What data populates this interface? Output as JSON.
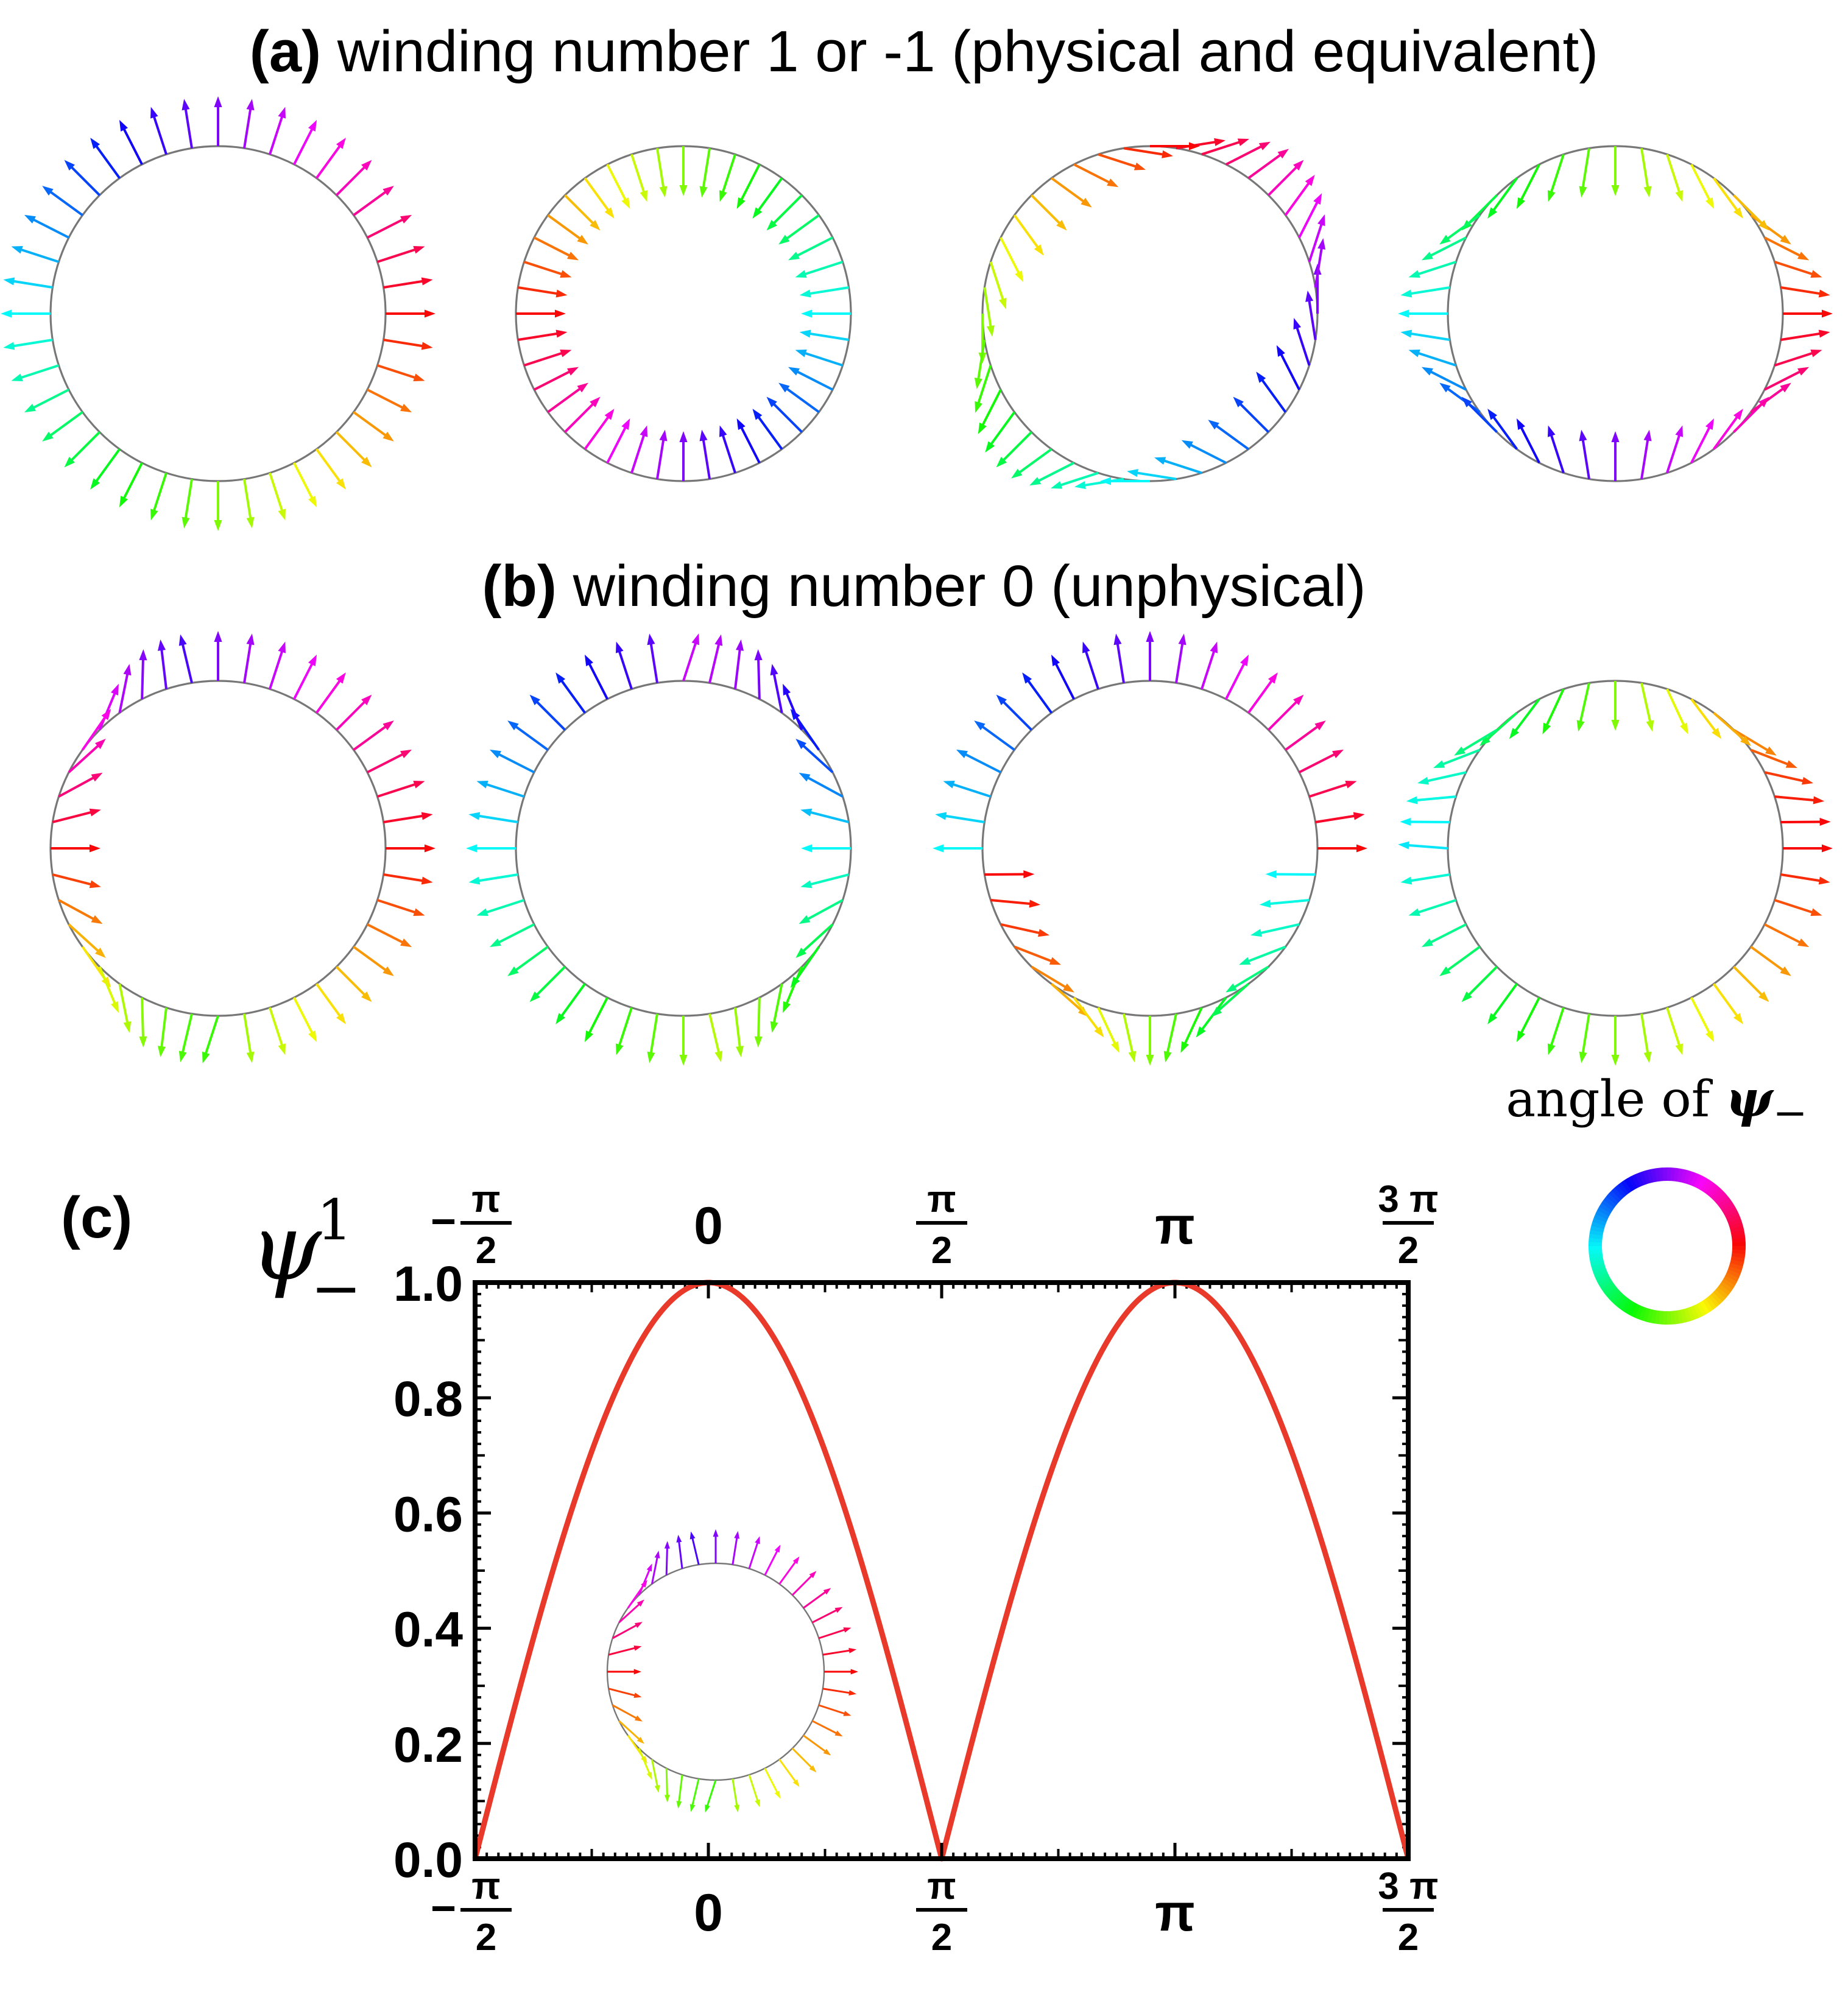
{
  "panel_a": {
    "label": "(a)",
    "title": "winding number 1 or -1 (physical and equivalent)",
    "patterns": [
      "outward",
      "inward",
      "spin-up",
      "spin-side"
    ]
  },
  "panel_b": {
    "label": "(b)",
    "title": "winding number 0 (unphysical)",
    "patterns": [
      "zero-right",
      "zero-left",
      "zero-up",
      "zero-side"
    ]
  },
  "panel_c": {
    "label": "(c)"
  },
  "legend": {
    "label_text": "angle of ",
    "label_symbol": "ψ",
    "label_subscript": "−",
    "ring_colors": [
      "#ff0000",
      "#ffff00",
      "#00ff00",
      "#00ffff",
      "#0000ff",
      "#ff00ff"
    ]
  },
  "chart_data": {
    "type": "line",
    "ylabel": "ψ",
    "ylabel_superscript": "1",
    "ylabel_subscript": "−",
    "xlim": [
      -1.5708,
      4.7124
    ],
    "ylim": [
      0,
      1
    ],
    "x_ticks": [
      {
        "value": -1.5708,
        "sign": "−",
        "num": "π",
        "den": "2"
      },
      {
        "value": 0,
        "text": "0"
      },
      {
        "value": 1.5708,
        "sign": "",
        "num": "π",
        "den": "2"
      },
      {
        "value": 3.1416,
        "text": "π"
      },
      {
        "value": 4.7124,
        "sign": "",
        "num": "3 π",
        "den": "2"
      }
    ],
    "y_ticks": [
      {
        "value": 0.0,
        "text": "0.0"
      },
      {
        "value": 0.2,
        "text": "0.2"
      },
      {
        "value": 0.4,
        "text": "0.4"
      },
      {
        "value": 0.6,
        "text": "0.6"
      },
      {
        "value": 0.8,
        "text": "0.8"
      },
      {
        "value": 1.0,
        "text": "1.0"
      }
    ],
    "series": [
      {
        "function": "|cos(x)|",
        "color": "#e8392a"
      }
    ],
    "inset": {
      "pattern": "zero-right"
    }
  }
}
